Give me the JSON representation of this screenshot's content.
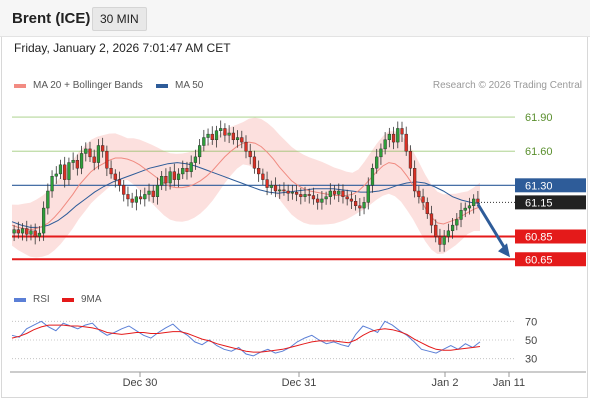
{
  "header": {
    "instrument": "Brent (ICE)",
    "timeframe": "30 MIN"
  },
  "timestamp": "Friday, January 2, 2026 7:01:47 AM CET",
  "copyright": "Research © 2026 Trading Central",
  "legend_main": [
    {
      "label": "MA 20 + Bollinger Bands",
      "color": "#f28b82"
    },
    {
      "label": "MA 50",
      "color": "#2e5c99"
    }
  ],
  "legend_rsi": [
    {
      "label": "RSI",
      "color": "#5b7fd6"
    },
    {
      "label": "9MA",
      "color": "#e41a1a"
    }
  ],
  "chart_data": [
    {
      "type": "candlestick",
      "title": "Brent (ICE)",
      "timeframe": "30 MIN",
      "x_ticks": [
        "Dec 30",
        "Dec 31",
        "Jan 2",
        "Jan 11"
      ],
      "y_ticks": [
        61.9,
        61.6
      ],
      "ylim": [
        60.45,
        62.05
      ],
      "last_price": 61.15,
      "levels": [
        {
          "value": 61.9,
          "label": "61.90",
          "kind": "resistance",
          "color": "#7ab648"
        },
        {
          "value": 61.6,
          "label": "61.60",
          "kind": "resistance",
          "color": "#7ab648"
        },
        {
          "value": 61.3,
          "label": "61.30",
          "kind": "pivot",
          "color": "#2e5c99"
        },
        {
          "value": 61.15,
          "label": "61.15",
          "kind": "last",
          "color": "#222222"
        },
        {
          "value": 60.85,
          "label": "60.85",
          "kind": "support",
          "color": "#e41a1a"
        },
        {
          "value": 60.65,
          "label": "60.65",
          "kind": "support",
          "color": "#e41a1a"
        }
      ],
      "forecast_arrow": {
        "from": 61.15,
        "to": 60.65,
        "direction": "down",
        "color": "#2e5c99"
      },
      "candles_close": [
        60.91,
        60.88,
        60.92,
        60.87,
        60.9,
        60.85,
        60.88,
        61.1,
        61.25,
        61.38,
        61.4,
        61.48,
        61.35,
        61.5,
        61.52,
        61.45,
        61.58,
        61.62,
        61.55,
        61.5,
        61.65,
        61.6,
        61.45,
        61.4,
        61.35,
        61.3,
        61.22,
        61.18,
        61.15,
        61.2,
        61.18,
        61.22,
        61.25,
        61.2,
        61.3,
        61.38,
        61.32,
        61.42,
        61.35,
        61.4,
        61.45,
        61.42,
        61.5,
        61.55,
        61.65,
        61.72,
        61.75,
        61.7,
        61.78,
        61.8,
        61.74,
        61.76,
        61.7,
        61.72,
        61.68,
        61.6,
        61.55,
        61.45,
        61.4,
        61.35,
        61.28,
        61.3,
        61.25,
        61.26,
        61.25,
        61.23,
        61.24,
        61.22,
        61.2,
        61.22,
        61.21,
        61.18,
        61.15,
        61.18,
        61.2,
        61.25,
        61.22,
        61.25,
        61.2,
        61.18,
        61.16,
        61.12,
        61.1,
        61.15,
        61.3,
        61.45,
        61.55,
        61.62,
        61.7,
        61.75,
        61.68,
        61.8,
        61.75,
        61.6,
        61.45,
        61.25,
        61.2,
        61.15,
        61.05,
        60.95,
        60.85,
        60.78,
        60.85,
        60.9,
        60.95,
        61.0,
        61.08,
        61.1,
        61.12,
        61.18,
        61.15
      ],
      "ma20": [
        60.95,
        60.93,
        60.92,
        60.91,
        60.92,
        60.94,
        60.97,
        61.02,
        61.08,
        61.15,
        61.22,
        61.3,
        61.36,
        61.42,
        61.46,
        61.49,
        61.52,
        61.54,
        61.54,
        61.53,
        61.51,
        61.48,
        61.44,
        61.4,
        61.36,
        61.32,
        61.29,
        61.28,
        61.28,
        61.29,
        61.31,
        61.34,
        61.38,
        61.43,
        61.49,
        61.55,
        61.6,
        61.64,
        61.67,
        61.68,
        61.67,
        61.64,
        61.59,
        61.53,
        61.46,
        61.4,
        61.34,
        61.3,
        61.27,
        61.25,
        61.24,
        61.23,
        61.22,
        61.21,
        61.21,
        61.21,
        61.22,
        61.25,
        61.3,
        61.36,
        61.42,
        61.47,
        61.5,
        61.49,
        61.45,
        61.38,
        61.3,
        61.2,
        61.1,
        61.02,
        60.97,
        60.96,
        60.98,
        61.0,
        61.03,
        61.06,
        61.09,
        61.11
      ],
      "ma50": [
        60.98,
        60.95,
        60.93,
        60.93,
        60.95,
        60.99,
        61.05,
        61.12,
        61.18,
        61.24,
        61.29,
        61.33,
        61.36,
        61.39,
        61.42,
        61.45,
        61.47,
        61.49,
        61.5,
        61.49,
        61.47,
        61.44,
        61.41,
        61.38,
        61.35,
        61.32,
        61.29,
        61.26,
        61.24,
        61.23,
        61.24,
        61.25,
        61.26,
        61.27,
        61.27,
        61.27,
        61.26,
        61.25,
        61.24,
        61.24,
        61.25,
        61.27,
        61.3,
        61.32,
        61.33,
        61.32,
        61.29,
        61.25,
        61.2,
        61.17,
        61.15,
        61.14
      ],
      "rsi_panel": {
        "y_ticks": [
          70,
          50,
          30
        ],
        "ylim": [
          20,
          80
        ],
        "rsi": [
          55,
          53,
          62,
          66,
          70,
          64,
          60,
          68,
          65,
          62,
          66,
          68,
          60,
          55,
          58,
          62,
          65,
          60,
          55,
          52,
          58,
          63,
          67,
          60,
          55,
          48,
          45,
          50,
          44,
          40,
          38,
          42,
          35,
          33,
          37,
          40,
          36,
          38,
          42,
          48,
          52,
          55,
          50,
          46,
          48,
          45,
          43,
          56,
          65,
          62,
          58,
          70,
          66,
          60,
          55,
          48,
          40,
          38,
          36,
          40,
          44,
          40,
          46,
          42,
          48
        ],
        "rsi_ma9": [
          52,
          54,
          57,
          61,
          64,
          66,
          66,
          66,
          65,
          65,
          64,
          63,
          61,
          58,
          57,
          56,
          57,
          58,
          58,
          57,
          57,
          58,
          59,
          59,
          57,
          54,
          51,
          49,
          46,
          44,
          42,
          40,
          38,
          37,
          37,
          38,
          39,
          40,
          42,
          44,
          46,
          48,
          49,
          49,
          49,
          48,
          47,
          50,
          55,
          59,
          61,
          62,
          61,
          59,
          56,
          51,
          47,
          43,
          40,
          39,
          39,
          40,
          41,
          42,
          43
        ]
      }
    }
  ]
}
